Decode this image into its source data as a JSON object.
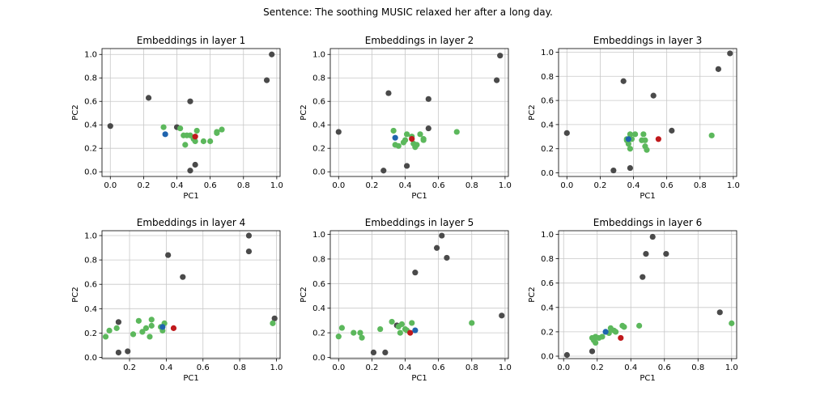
{
  "suptitle": "Sentence: The soothing MUSIC relaxed her after a long day.",
  "colors": {
    "other": "#4a4a4a",
    "context": "#5cb85c",
    "highlight": "#c0191c",
    "target": "#1f64ae",
    "grid": "#c8c8c8"
  },
  "chart_data": [
    {
      "type": "scatter",
      "title": "Embeddings in layer 1",
      "xlabel": "PC1",
      "ylabel": "PC2",
      "xlim": [
        -0.05,
        1.02
      ],
      "ylim": [
        -0.04,
        1.05
      ],
      "xticks": [
        0.0,
        0.2,
        0.4,
        0.6,
        0.8,
        1.0
      ],
      "yticks": [
        0.0,
        0.2,
        0.4,
        0.6,
        0.8,
        1.0
      ],
      "grid": true,
      "series": [
        {
          "role": "other",
          "points": [
            [
              0.0,
              0.39
            ],
            [
              0.23,
              0.63
            ],
            [
              0.4,
              0.38
            ],
            [
              0.48,
              0.6
            ],
            [
              0.94,
              0.78
            ],
            [
              0.97,
              1.0
            ],
            [
              0.51,
              0.06
            ],
            [
              0.48,
              0.01
            ]
          ]
        },
        {
          "role": "context",
          "points": [
            [
              0.32,
              0.38
            ],
            [
              0.42,
              0.37
            ],
            [
              0.44,
              0.31
            ],
            [
              0.46,
              0.31
            ],
            [
              0.48,
              0.31
            ],
            [
              0.5,
              0.28
            ],
            [
              0.51,
              0.26
            ],
            [
              0.52,
              0.35
            ],
            [
              0.56,
              0.26
            ],
            [
              0.6,
              0.26
            ],
            [
              0.64,
              0.33
            ],
            [
              0.64,
              0.34
            ],
            [
              0.67,
              0.36
            ],
            [
              0.45,
              0.23
            ]
          ]
        },
        {
          "role": "highlight",
          "points": [
            [
              0.51,
              0.3
            ]
          ]
        },
        {
          "role": "target",
          "points": [
            [
              0.33,
              0.32
            ]
          ]
        }
      ]
    },
    {
      "type": "scatter",
      "title": "Embeddings in layer 2",
      "xlabel": "PC1",
      "ylabel": "PC2",
      "xlim": [
        -0.05,
        1.02
      ],
      "ylim": [
        -0.04,
        1.05
      ],
      "xticks": [
        0.0,
        0.2,
        0.4,
        0.6,
        0.8,
        1.0
      ],
      "yticks": [
        0.0,
        0.2,
        0.4,
        0.6,
        0.8,
        1.0
      ],
      "grid": true,
      "series": [
        {
          "role": "other",
          "points": [
            [
              0.0,
              0.34
            ],
            [
              0.3,
              0.67
            ],
            [
              0.27,
              0.01
            ],
            [
              0.41,
              0.05
            ],
            [
              0.54,
              0.62
            ],
            [
              0.54,
              0.37
            ],
            [
              0.95,
              0.78
            ],
            [
              0.97,
              0.99
            ]
          ]
        },
        {
          "role": "context",
          "points": [
            [
              0.33,
              0.35
            ],
            [
              0.36,
              0.22
            ],
            [
              0.39,
              0.25
            ],
            [
              0.4,
              0.27
            ],
            [
              0.41,
              0.32
            ],
            [
              0.44,
              0.3
            ],
            [
              0.45,
              0.24
            ],
            [
              0.46,
              0.21
            ],
            [
              0.47,
              0.23
            ],
            [
              0.49,
              0.32
            ],
            [
              0.51,
              0.28
            ],
            [
              0.51,
              0.27
            ],
            [
              0.71,
              0.34
            ],
            [
              0.34,
              0.23
            ]
          ]
        },
        {
          "role": "highlight",
          "points": [
            [
              0.44,
              0.28
            ]
          ]
        },
        {
          "role": "target",
          "points": [
            [
              0.34,
              0.29
            ]
          ]
        }
      ]
    },
    {
      "type": "scatter",
      "title": "Embeddings in layer 3",
      "xlabel": "PC1",
      "ylabel": "PC2",
      "xlim": [
        -0.05,
        1.02
      ],
      "ylim": [
        -0.03,
        1.03
      ],
      "xticks": [
        0.0,
        0.2,
        0.4,
        0.6,
        0.8,
        1.0
      ],
      "yticks": [
        0.0,
        0.2,
        0.4,
        0.6,
        0.8,
        1.0
      ],
      "grid": true,
      "series": [
        {
          "role": "other",
          "points": [
            [
              0.0,
              0.33
            ],
            [
              0.28,
              0.02
            ],
            [
              0.34,
              0.76
            ],
            [
              0.38,
              0.04
            ],
            [
              0.52,
              0.64
            ],
            [
              0.63,
              0.35
            ],
            [
              0.91,
              0.86
            ],
            [
              0.98,
              0.99
            ]
          ]
        },
        {
          "role": "context",
          "points": [
            [
              0.36,
              0.28
            ],
            [
              0.37,
              0.24
            ],
            [
              0.38,
              0.2
            ],
            [
              0.38,
              0.32
            ],
            [
              0.41,
              0.32
            ],
            [
              0.45,
              0.27
            ],
            [
              0.46,
              0.32
            ],
            [
              0.47,
              0.22
            ],
            [
              0.48,
              0.19
            ],
            [
              0.47,
              0.27
            ],
            [
              0.87,
              0.31
            ],
            [
              0.39,
              0.28
            ],
            [
              0.36,
              0.27
            ]
          ]
        },
        {
          "role": "highlight",
          "points": [
            [
              0.55,
              0.28
            ]
          ]
        },
        {
          "role": "target",
          "points": [
            [
              0.37,
              0.28
            ]
          ]
        }
      ]
    },
    {
      "type": "scatter",
      "title": "Embeddings in layer 4",
      "xlabel": "PC1",
      "ylabel": "PC2",
      "xlim": [
        0.05,
        1.02
      ],
      "ylim": [
        -0.01,
        1.04
      ],
      "xticks": [
        0.2,
        0.4,
        0.6,
        0.8,
        1.0
      ],
      "yticks": [
        0.0,
        0.2,
        0.4,
        0.6,
        0.8,
        1.0
      ],
      "grid": true,
      "series": [
        {
          "role": "other",
          "points": [
            [
              0.14,
              0.29
            ],
            [
              0.14,
              0.04
            ],
            [
              0.19,
              0.05
            ],
            [
              0.41,
              0.84
            ],
            [
              0.49,
              0.66
            ],
            [
              0.85,
              0.87
            ],
            [
              0.85,
              1.0
            ],
            [
              0.99,
              0.32
            ]
          ]
        },
        {
          "role": "context",
          "points": [
            [
              0.07,
              0.17
            ],
            [
              0.09,
              0.22
            ],
            [
              0.13,
              0.24
            ],
            [
              0.22,
              0.19
            ],
            [
              0.25,
              0.3
            ],
            [
              0.27,
              0.21
            ],
            [
              0.29,
              0.24
            ],
            [
              0.31,
              0.17
            ],
            [
              0.32,
              0.26
            ],
            [
              0.32,
              0.31
            ],
            [
              0.37,
              0.25
            ],
            [
              0.38,
              0.22
            ],
            [
              0.39,
              0.28
            ],
            [
              0.98,
              0.28
            ]
          ]
        },
        {
          "role": "highlight",
          "points": [
            [
              0.44,
              0.24
            ]
          ]
        },
        {
          "role": "target",
          "points": [
            [
              0.38,
              0.25
            ]
          ]
        }
      ]
    },
    {
      "type": "scatter",
      "title": "Embeddings in layer 5",
      "xlabel": "PC1",
      "ylabel": "PC2",
      "xlim": [
        -0.05,
        1.02
      ],
      "ylim": [
        -0.01,
        1.03
      ],
      "xticks": [
        0.0,
        0.2,
        0.4,
        0.6,
        0.8,
        1.0
      ],
      "yticks": [
        0.0,
        0.2,
        0.4,
        0.6,
        0.8,
        1.0
      ],
      "grid": true,
      "series": [
        {
          "role": "other",
          "points": [
            [
              0.21,
              0.04
            ],
            [
              0.28,
              0.04
            ],
            [
              0.35,
              0.26
            ],
            [
              0.46,
              0.69
            ],
            [
              0.59,
              0.89
            ],
            [
              0.62,
              0.99
            ],
            [
              0.65,
              0.81
            ],
            [
              0.98,
              0.34
            ]
          ]
        },
        {
          "role": "context",
          "points": [
            [
              0.0,
              0.17
            ],
            [
              0.02,
              0.24
            ],
            [
              0.09,
              0.2
            ],
            [
              0.13,
              0.2
            ],
            [
              0.14,
              0.16
            ],
            [
              0.25,
              0.23
            ],
            [
              0.32,
              0.29
            ],
            [
              0.36,
              0.25
            ],
            [
              0.37,
              0.2
            ],
            [
              0.38,
              0.27
            ],
            [
              0.4,
              0.23
            ],
            [
              0.41,
              0.22
            ],
            [
              0.44,
              0.28
            ],
            [
              0.8,
              0.28
            ]
          ]
        },
        {
          "role": "highlight",
          "points": [
            [
              0.43,
              0.2
            ]
          ]
        },
        {
          "role": "target",
          "points": [
            [
              0.46,
              0.22
            ]
          ]
        }
      ]
    },
    {
      "type": "scatter",
      "title": "Embeddings in layer 6",
      "xlabel": "PC1",
      "ylabel": "PC2",
      "xlim": [
        -0.03,
        1.03
      ],
      "ylim": [
        -0.02,
        1.03
      ],
      "xticks": [
        0.0,
        0.2,
        0.4,
        0.6,
        0.8,
        1.0
      ],
      "yticks": [
        0.0,
        0.2,
        0.4,
        0.6,
        0.8,
        1.0
      ],
      "grid": true,
      "series": [
        {
          "role": "other",
          "points": [
            [
              0.02,
              0.01
            ],
            [
              0.17,
              0.04
            ],
            [
              0.47,
              0.65
            ],
            [
              0.49,
              0.84
            ],
            [
              0.53,
              0.98
            ],
            [
              0.61,
              0.84
            ],
            [
              0.93,
              0.36
            ]
          ]
        },
        {
          "role": "context",
          "points": [
            [
              0.17,
              0.15
            ],
            [
              0.18,
              0.13
            ],
            [
              0.19,
              0.11
            ],
            [
              0.19,
              0.16
            ],
            [
              0.21,
              0.15
            ],
            [
              0.23,
              0.16
            ],
            [
              0.27,
              0.19
            ],
            [
              0.28,
              0.23
            ],
            [
              0.3,
              0.21
            ],
            [
              0.31,
              0.2
            ],
            [
              0.35,
              0.25
            ],
            [
              0.36,
              0.24
            ],
            [
              0.45,
              0.25
            ],
            [
              1.0,
              0.27
            ]
          ]
        },
        {
          "role": "highlight",
          "points": [
            [
              0.34,
              0.15
            ]
          ]
        },
        {
          "role": "target",
          "points": [
            [
              0.25,
              0.2
            ]
          ]
        }
      ]
    }
  ]
}
